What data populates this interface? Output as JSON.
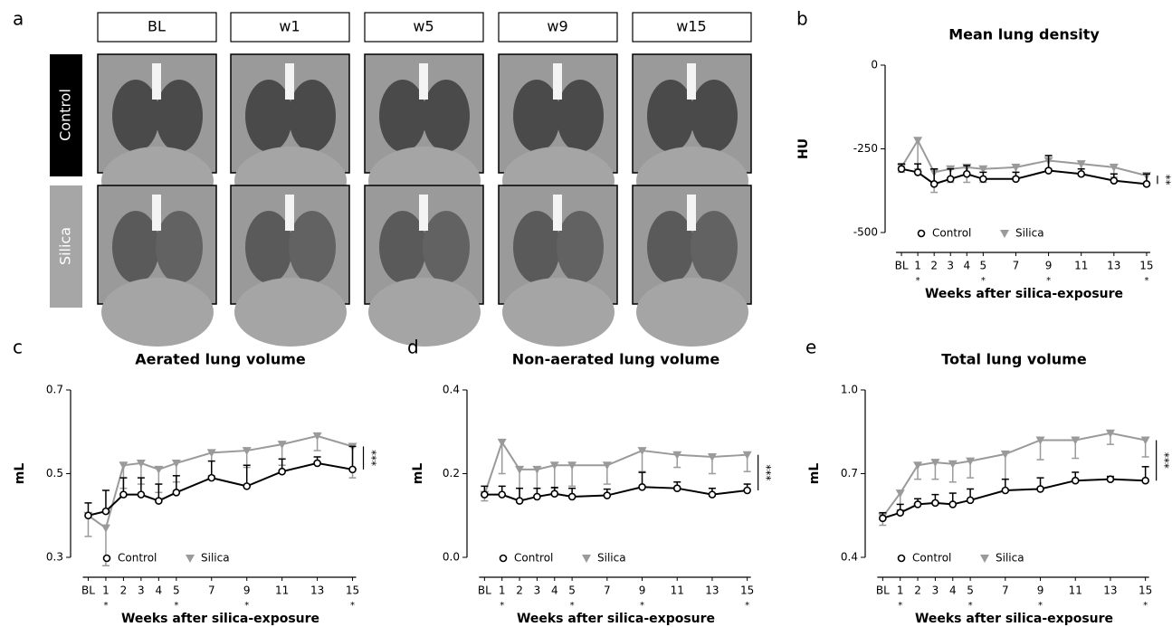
{
  "panel_a": {
    "label": "a",
    "columns": [
      "BL",
      "w1",
      "w5",
      "w9",
      "w15"
    ],
    "rows": [
      "Control",
      "Silica"
    ]
  },
  "chart_data": [
    {
      "type": "line",
      "panel": "b",
      "title": "Mean lung density",
      "xlabel": "Weeks after silica-exposure",
      "ylabel": "HU",
      "x": [
        0,
        1,
        2,
        3,
        4,
        5,
        7,
        9,
        11,
        13,
        15
      ],
      "xlim": [
        -1,
        16
      ],
      "xticks": [
        {
          "value": 0,
          "label": "BL"
        },
        1,
        2,
        3,
        4,
        5,
        7,
        9,
        11,
        13,
        15
      ],
      "ylim": [
        -500,
        0
      ],
      "yticks": [
        0,
        -250,
        -500
      ],
      "legend": "bottom-left",
      "significance": "**",
      "annotations": [
        {
          "x": 1,
          "text": "*"
        },
        {
          "x": 5,
          "text": "*"
        },
        {
          "x": 9,
          "text": "*"
        },
        {
          "x": 15,
          "text": "*"
        }
      ],
      "series": [
        {
          "name": "Control",
          "color": "#000000",
          "marker": "circle",
          "values": [
            -310,
            -320,
            -355,
            -340,
            -325,
            -340,
            -340,
            -315,
            -325,
            -345,
            -355
          ],
          "errors": [
            15,
            25,
            45,
            30,
            25,
            20,
            20,
            45,
            15,
            20,
            30
          ]
        },
        {
          "name": "Silica",
          "color": "#9a9a9a",
          "marker": "triangle",
          "values": [
            -305,
            -225,
            -320,
            -310,
            -305,
            -310,
            -305,
            -285,
            -295,
            -305,
            -330
          ],
          "errors": [
            15,
            85,
            60,
            40,
            45,
            40,
            30,
            25,
            35,
            30,
            30
          ]
        }
      ]
    },
    {
      "type": "line",
      "panel": "c",
      "title": "Aerated lung volume",
      "xlabel": "Weeks after silica-exposure",
      "ylabel": "mL",
      "x": [
        0,
        1,
        2,
        3,
        4,
        5,
        7,
        9,
        11,
        13,
        15
      ],
      "xlim": [
        -1,
        16
      ],
      "xticks": [
        {
          "value": 0,
          "label": "BL"
        },
        1,
        2,
        3,
        4,
        5,
        7,
        9,
        11,
        13,
        15
      ],
      "ylim": [
        0.3,
        0.7
      ],
      "yticks": [
        0.3,
        0.5,
        0.7
      ],
      "legend": "bottom-left",
      "significance": "***",
      "annotations": [
        {
          "x": 1,
          "text": "*"
        },
        {
          "x": 5,
          "text": "*"
        },
        {
          "x": 9,
          "text": "*"
        },
        {
          "x": 15,
          "text": "*"
        }
      ],
      "series": [
        {
          "name": "Control",
          "color": "#000000",
          "marker": "circle",
          "values": [
            0.4,
            0.41,
            0.45,
            0.45,
            0.435,
            0.455,
            0.49,
            0.47,
            0.505,
            0.525,
            0.51
          ],
          "errors": [
            0.03,
            0.05,
            0.04,
            0.04,
            0.04,
            0.04,
            0.04,
            0.05,
            0.03,
            0.015,
            0.055
          ]
        },
        {
          "name": "Silica",
          "color": "#9a9a9a",
          "marker": "triangle",
          "values": [
            0.4,
            0.37,
            0.52,
            0.525,
            0.51,
            0.525,
            0.55,
            0.555,
            0.57,
            0.59,
            0.565
          ],
          "errors": [
            0.05,
            0.09,
            0.055,
            0.05,
            0.055,
            0.045,
            0.055,
            0.04,
            0.05,
            0.035,
            0.075
          ]
        }
      ]
    },
    {
      "type": "line",
      "panel": "d",
      "title": "Non-aerated lung volume",
      "xlabel": "Weeks after silica-exposure",
      "ylabel": "mL",
      "x": [
        0,
        1,
        2,
        3,
        4,
        5,
        7,
        9,
        11,
        13,
        15
      ],
      "xlim": [
        -1,
        16
      ],
      "xticks": [
        {
          "value": 0,
          "label": "BL"
        },
        1,
        2,
        3,
        4,
        5,
        7,
        9,
        11,
        13,
        15
      ],
      "ylim": [
        0,
        0.4
      ],
      "yticks": [
        {
          "value": 0,
          "label": "0.0"
        },
        0.2,
        0.4
      ],
      "legend": "bottom-left",
      "significance": "***",
      "annotations": [
        {
          "x": 1,
          "text": "*"
        },
        {
          "x": 5,
          "text": "*"
        },
        {
          "x": 9,
          "text": "*"
        },
        {
          "x": 15,
          "text": "*"
        }
      ],
      "series": [
        {
          "name": "Control",
          "color": "#000000",
          "marker": "circle",
          "values": [
            0.15,
            0.15,
            0.135,
            0.145,
            0.152,
            0.145,
            0.148,
            0.168,
            0.165,
            0.15,
            0.16
          ],
          "errors": [
            0.02,
            0.02,
            0.03,
            0.02,
            0.015,
            0.02,
            0.015,
            0.035,
            0.015,
            0.015,
            0.015
          ]
        },
        {
          "name": "Silica",
          "color": "#9a9a9a",
          "marker": "triangle",
          "values": [
            0.15,
            0.275,
            0.21,
            0.21,
            0.22,
            0.22,
            0.22,
            0.255,
            0.245,
            0.24,
            0.245
          ],
          "errors": [
            0.015,
            0.075,
            0.075,
            0.065,
            0.055,
            0.05,
            0.045,
            0.05,
            0.03,
            0.04,
            0.04
          ]
        }
      ]
    },
    {
      "type": "line",
      "panel": "e",
      "title": "Total lung volume",
      "xlabel": "Weeks after silica-exposure",
      "ylabel": "mL",
      "x": [
        0,
        1,
        2,
        3,
        4,
        5,
        7,
        9,
        11,
        13,
        15
      ],
      "xlim": [
        -1,
        16
      ],
      "xticks": [
        {
          "value": 0,
          "label": "BL"
        },
        1,
        2,
        3,
        4,
        5,
        7,
        9,
        11,
        13,
        15
      ],
      "ylim": [
        0.4,
        1.0
      ],
      "yticks": [
        0.4,
        0.7,
        {
          "value": 1.0,
          "label": "1.0"
        }
      ],
      "legend": "bottom-left",
      "significance": "***",
      "annotations": [
        {
          "x": 1,
          "text": "*"
        },
        {
          "x": 5,
          "text": "*"
        },
        {
          "x": 9,
          "text": "*"
        },
        {
          "x": 15,
          "text": "*"
        }
      ],
      "series": [
        {
          "name": "Control",
          "color": "#000000",
          "marker": "circle",
          "values": [
            0.54,
            0.56,
            0.59,
            0.595,
            0.59,
            0.605,
            0.64,
            0.645,
            0.675,
            0.68,
            0.675
          ],
          "errors": [
            0.02,
            0.03,
            0.02,
            0.03,
            0.04,
            0.04,
            0.04,
            0.04,
            0.03,
            0.01,
            0.05
          ]
        },
        {
          "name": "Silica",
          "color": "#9a9a9a",
          "marker": "triangle",
          "values": [
            0.545,
            0.63,
            0.73,
            0.74,
            0.735,
            0.745,
            0.77,
            0.82,
            0.82,
            0.845,
            0.82
          ],
          "errors": [
            0.03,
            0.06,
            0.05,
            0.06,
            0.065,
            0.06,
            0.09,
            0.07,
            0.065,
            0.04,
            0.06
          ]
        }
      ]
    }
  ]
}
